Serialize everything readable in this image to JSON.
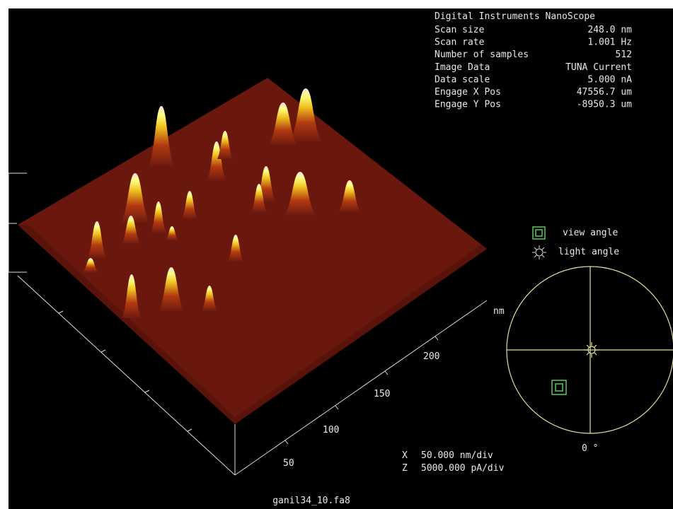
{
  "info": {
    "title": "Digital Instruments NanoScope",
    "rows": [
      [
        "Scan size",
        "248.0 nm"
      ],
      [
        "Scan rate",
        "1.001 Hz"
      ],
      [
        "Number of samples",
        "512"
      ],
      [
        "Image Data",
        "TUNA Current"
      ],
      [
        "Data scale",
        "5.000 nA"
      ],
      [
        "Engage X Pos",
        "47556.7 um"
      ],
      [
        "Engage Y Pos",
        "-8950.3 um"
      ]
    ]
  },
  "axis": {
    "unit": "nm",
    "ticks": [
      "50",
      "100",
      "150",
      "200"
    ]
  },
  "legend": {
    "view": "view angle",
    "light": "light angle",
    "angle": "0 °"
  },
  "scale": [
    [
      "X",
      "50.000 nm/div"
    ],
    [
      "Z",
      "5000.000 pA/div"
    ]
  ],
  "filename": "ganil34_10.fa8"
}
